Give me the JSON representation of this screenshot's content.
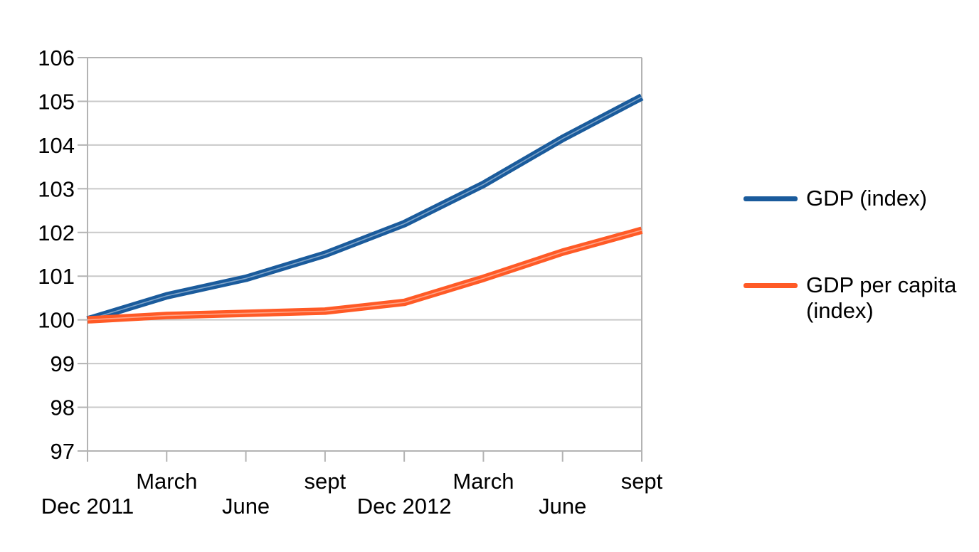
{
  "chart_data": {
    "type": "line",
    "title": "",
    "categories": [
      "Dec 2011",
      "March",
      "June",
      "sept",
      "Dec 2012",
      "March",
      "June",
      "sept"
    ],
    "series": [
      {
        "name": "GDP (index)",
        "color": "#1A5B9C",
        "values": [
          100.0,
          100.55,
          100.95,
          101.5,
          102.2,
          103.1,
          104.15,
          105.1
        ]
      },
      {
        "name": "GDP per capita (index)",
        "color": "#FF5A26",
        "values": [
          100.0,
          100.1,
          100.15,
          100.2,
          100.4,
          100.95,
          101.55,
          102.05
        ]
      }
    ],
    "ylim": [
      97,
      106
    ],
    "yticks": [
      97,
      98,
      99,
      100,
      101,
      102,
      103,
      104,
      105,
      106
    ],
    "grid": "horizontal",
    "legend_position": "right",
    "axis_color": "#B3B3B3",
    "gridline_color": "#C9C9C9",
    "text_color": "#000000"
  },
  "legend": {
    "items": [
      {
        "label": "GDP (index)",
        "color": "#1A5B9C"
      },
      {
        "label": "GDP per capita (index)",
        "color": "#FF5A26"
      }
    ]
  }
}
